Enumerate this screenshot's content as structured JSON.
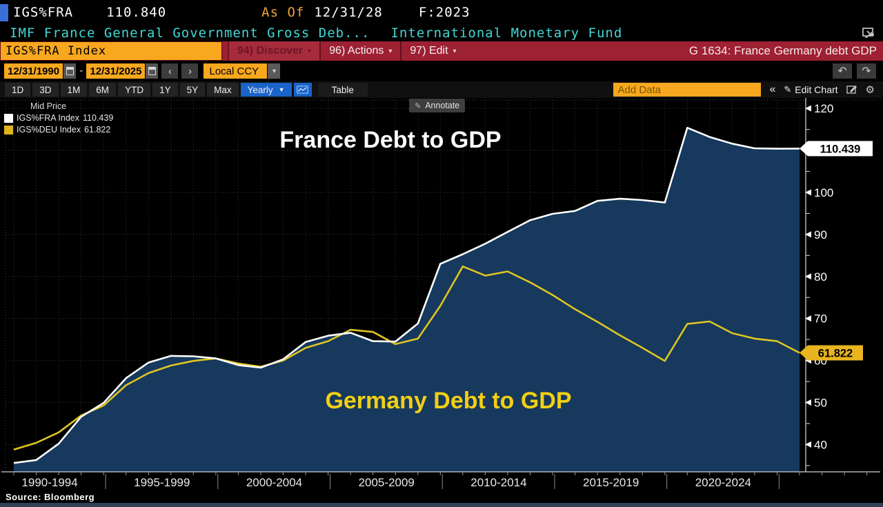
{
  "topbar": {
    "ticker": "IGS%FRA",
    "last_price": "110.840",
    "as_of_label": "As Of",
    "as_of_date": "12/31/28",
    "frequency": "F:2023",
    "description": "IMF France General Government Gross Deb...",
    "source_org": "International Monetary Fund"
  },
  "menubar": {
    "security_input": "IGS%FRA Index",
    "discover": "94) Discover",
    "actions": "96) Actions",
    "edit": "97) Edit",
    "chart_title": "G 1634: France Germany debt GDP"
  },
  "controls": {
    "date_from": "12/31/1990",
    "date_to": "12/31/2025",
    "range_separator": "-",
    "currency": "Local CCY",
    "ranges": [
      "1D",
      "3D",
      "1M",
      "6M",
      "YTD",
      "1Y",
      "5Y",
      "Max"
    ],
    "period": "Yearly",
    "table_label": "Table",
    "add_data_placeholder": "Add Data",
    "edit_chart_label": "Edit Chart"
  },
  "icons": {
    "caret_down": "▾",
    "dropdown_down": "▼",
    "chevron_left": "‹",
    "chevron_right": "›",
    "undo": "↶",
    "redo": "↷",
    "collapse": "«",
    "pencil": "✎",
    "gear": "⚙",
    "annotate_pencil": "✎"
  },
  "chart": {
    "legend_title": "Mid Price",
    "legend": [
      {
        "label": "IGS%FRA Index",
        "value": "110.439"
      },
      {
        "label": "IGS%DEU Index",
        "value": "61.822"
      }
    ],
    "annotate_label": "Annotate",
    "france_title": "France Debt to GDP",
    "germany_title": "Germany Debt to GDP",
    "source": "Source: Bloomberg"
  },
  "chart_data": {
    "type": "line",
    "x_years": [
      1990,
      1991,
      1992,
      1993,
      1994,
      1995,
      1996,
      1997,
      1998,
      1999,
      2000,
      2001,
      2002,
      2003,
      2004,
      2005,
      2006,
      2007,
      2008,
      2009,
      2010,
      2011,
      2012,
      2013,
      2014,
      2015,
      2016,
      2017,
      2018,
      2019,
      2020,
      2021,
      2022,
      2023,
      2024,
      2025
    ],
    "x_group_labels": [
      "1990-1994",
      "1995-1999",
      "2000-2004",
      "2005-2009",
      "2010-2014",
      "2015-2019",
      "2020-2024"
    ],
    "ylim": [
      33.5,
      122
    ],
    "yticks": [
      40,
      50,
      60,
      70,
      80,
      90,
      100,
      110,
      120
    ],
    "ytick_minor_step": 5,
    "grid": true,
    "background": "#000000",
    "area_fill": "#16395d",
    "series": [
      {
        "name": "IGS%FRA Index",
        "label": "France Debt to GDP",
        "color": "#ffffff",
        "tag_color": "#ffffff",
        "last_label": "110.439",
        "values": [
          35.6,
          36.3,
          40.2,
          46.6,
          49.9,
          55.8,
          59.5,
          61.1,
          61.0,
          60.5,
          58.9,
          58.3,
          60.3,
          64.4,
          65.9,
          66.6,
          64.6,
          64.5,
          68.8,
          83.0,
          85.3,
          87.8,
          90.6,
          93.4,
          94.9,
          95.6,
          98.0,
          98.5,
          98.2,
          97.6,
          115.4,
          113.2,
          111.6,
          110.5,
          110.4,
          110.439
        ]
      },
      {
        "name": "IGS%DEU Index",
        "label": "Germany Debt to GDP",
        "color": "#e0c522",
        "tag_color": "#e9b41f",
        "last_label": "61.822",
        "values": [
          38.8,
          40.4,
          42.9,
          46.9,
          49.3,
          54.1,
          57.0,
          58.8,
          59.9,
          60.5,
          59.3,
          58.5,
          60.0,
          63.0,
          64.6,
          67.3,
          66.8,
          63.9,
          65.2,
          73.0,
          82.4,
          80.2,
          81.2,
          78.6,
          75.6,
          72.2,
          69.2,
          66.0,
          63.0,
          59.9,
          68.7,
          69.3,
          66.5,
          65.2,
          64.6,
          61.822
        ]
      }
    ],
    "title_colors": {
      "france": "#ffffff",
      "germany": "#f2cf13"
    }
  }
}
